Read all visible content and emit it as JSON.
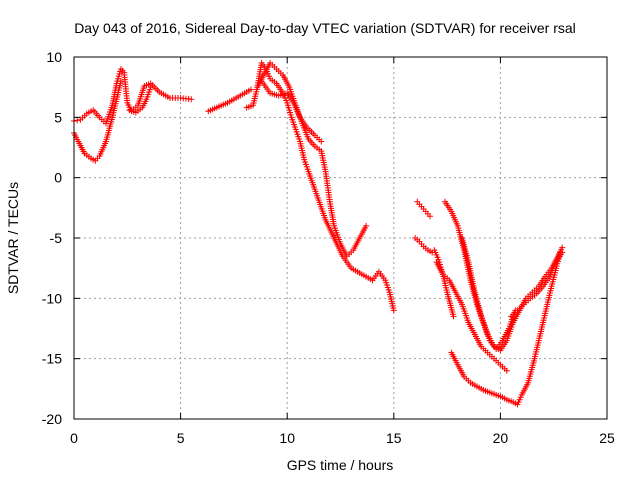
{
  "chart_data": {
    "type": "scatter",
    "title": "Day 043 of 2016, Sidereal Day-to-day VTEC variation (SDTVAR) for receiver rsal",
    "xlabel": "GPS time / hours",
    "ylabel": "SDTVAR / TECUs",
    "xlim": [
      0,
      25
    ],
    "ylim": [
      -20,
      10
    ],
    "xticks": [
      "0",
      "5",
      "10",
      "15",
      "20",
      "25"
    ],
    "yticks": [
      "10",
      "5",
      "0",
      "-5",
      "-10",
      "-15",
      "-20"
    ],
    "xtick_values": [
      0,
      5,
      10,
      15,
      20,
      25
    ],
    "ytick_values": [
      10,
      5,
      0,
      -5,
      -10,
      -15,
      -20
    ],
    "grid": true,
    "marker": "plus",
    "color": "#ff0000",
    "series": [
      {
        "x": [
          0.0,
          0.3,
          0.6,
          0.9,
          1.2,
          1.5,
          1.8,
          2.0,
          2.2,
          2.35,
          2.5,
          2.7,
          3.0,
          3.3,
          3.6,
          4.0,
          4.5,
          5.0,
          5.5
        ],
        "y": [
          4.7,
          4.8,
          5.3,
          5.6,
          5.0,
          4.5,
          6.0,
          7.8,
          9.0,
          8.7,
          6.2,
          5.5,
          6.0,
          7.6,
          7.8,
          7.1,
          6.6,
          6.6,
          6.5
        ]
      },
      {
        "x": [
          0.0,
          0.2,
          0.5,
          0.8,
          1.0,
          1.2,
          1.5,
          1.8,
          2.0,
          2.2
        ],
        "y": [
          3.7,
          3.0,
          2.0,
          1.6,
          1.4,
          1.8,
          3.0,
          5.0,
          6.5,
          8.0
        ]
      },
      {
        "x": [
          2.6,
          2.9,
          3.2,
          3.4,
          3.6
        ],
        "y": [
          5.6,
          5.4,
          5.8,
          6.5,
          7.5
        ]
      },
      {
        "x": [
          6.3,
          6.8,
          7.2,
          7.6,
          8.0,
          8.3
        ],
        "y": [
          5.5,
          5.9,
          6.2,
          6.6,
          7.0,
          7.3
        ]
      },
      {
        "x": [
          8.1,
          8.4,
          8.6,
          8.8,
          9.0,
          9.2,
          9.5,
          9.8,
          10.0,
          10.2,
          10.4,
          10.6,
          10.8,
          11.0,
          11.4,
          11.8,
          12.2,
          12.6,
          13.0,
          13.5,
          14.0,
          14.3,
          14.6,
          14.8,
          15.0
        ],
        "y": [
          5.8,
          6.0,
          7.5,
          9.5,
          9.0,
          8.2,
          7.8,
          7.0,
          6.2,
          5.0,
          4.0,
          3.0,
          1.5,
          0.5,
          -1.5,
          -3.5,
          -5.0,
          -6.5,
          -7.5,
          -8.0,
          -8.5,
          -7.8,
          -8.5,
          -9.5,
          -11.0
        ]
      },
      {
        "x": [
          8.6,
          8.9,
          9.2,
          9.5,
          9.8,
          10.1,
          10.4,
          10.7,
          11.0,
          11.3,
          11.6,
          11.8,
          12.0,
          12.2,
          12.5,
          12.8,
          13.1,
          13.4,
          13.7
        ],
        "y": [
          7.5,
          8.5,
          9.5,
          9.0,
          8.5,
          7.5,
          6.0,
          4.5,
          3.2,
          2.6,
          2.2,
          0.5,
          -2.0,
          -4.0,
          -5.5,
          -6.5,
          -6.0,
          -5.0,
          -4.0
        ]
      },
      {
        "x": [
          8.8,
          9.2,
          9.6,
          10.0,
          10.3,
          10.6,
          10.9,
          11.3,
          11.6
        ],
        "y": [
          8.0,
          7.0,
          6.8,
          7.0,
          6.2,
          5.0,
          4.2,
          3.5,
          3.0
        ]
      },
      {
        "x": [
          16.0,
          16.2,
          16.4,
          16.6,
          16.8
        ],
        "y": [
          -5.0,
          -5.3,
          -5.7,
          -6.0,
          -6.2
        ]
      },
      {
        "x": [
          16.1,
          16.3,
          16.5,
          16.7
        ],
        "y": [
          -2.0,
          -2.4,
          -2.8,
          -3.2
        ]
      },
      {
        "x": [
          16.9,
          17.1,
          17.3,
          17.5,
          17.8
        ],
        "y": [
          -6.0,
          -6.8,
          -8.0,
          -9.5,
          -11.5
        ]
      },
      {
        "x": [
          17.0,
          17.3,
          17.6,
          17.9,
          18.2,
          18.5,
          18.8,
          19.1,
          19.4,
          19.7,
          20.0,
          20.3
        ],
        "y": [
          -7.0,
          -8.0,
          -8.5,
          -9.5,
          -10.5,
          -12.0,
          -13.0,
          -14.0,
          -14.5,
          -15.0,
          -15.5,
          -16.0
        ]
      },
      {
        "x": [
          17.7,
          18.0,
          18.3,
          18.6,
          18.9,
          19.2,
          19.5,
          19.8,
          20.1,
          20.3,
          20.6,
          20.8,
          21.0,
          21.3,
          21.6,
          22.0,
          22.4,
          22.8
        ],
        "y": [
          -14.5,
          -15.5,
          -16.5,
          -17.0,
          -17.3,
          -17.6,
          -17.8,
          -18.0,
          -18.2,
          -18.4,
          -18.6,
          -18.8,
          -18.0,
          -17.0,
          -15.0,
          -12.0,
          -9.0,
          -6.2
        ]
      },
      {
        "x": [
          17.4,
          17.7,
          18.0,
          18.3,
          18.6,
          18.9,
          19.2,
          19.5,
          19.8,
          20.1,
          20.4,
          20.7
        ],
        "y": [
          -2.0,
          -2.8,
          -4.0,
          -6.0,
          -8.5,
          -10.5,
          -12.0,
          -13.5,
          -14.2,
          -13.5,
          -12.5,
          -11.0
        ]
      },
      {
        "x": [
          18.2,
          18.5,
          18.8,
          19.1,
          19.4,
          19.7,
          20.0,
          20.3,
          20.6,
          20.9,
          21.2,
          21.5,
          21.8,
          22.1,
          22.4,
          22.7,
          22.9
        ],
        "y": [
          -5.0,
          -7.0,
          -9.5,
          -11.5,
          -13.0,
          -14.0,
          -14.3,
          -13.5,
          -12.0,
          -11.0,
          -10.0,
          -9.5,
          -9.0,
          -8.2,
          -7.5,
          -6.5,
          -5.8
        ]
      },
      {
        "x": [
          20.5,
          20.8,
          21.1,
          21.4,
          21.7,
          22.0,
          22.3,
          22.6,
          22.9
        ],
        "y": [
          -11.5,
          -11.0,
          -10.5,
          -10.0,
          -9.6,
          -9.0,
          -8.2,
          -7.0,
          -6.2
        ]
      }
    ]
  }
}
